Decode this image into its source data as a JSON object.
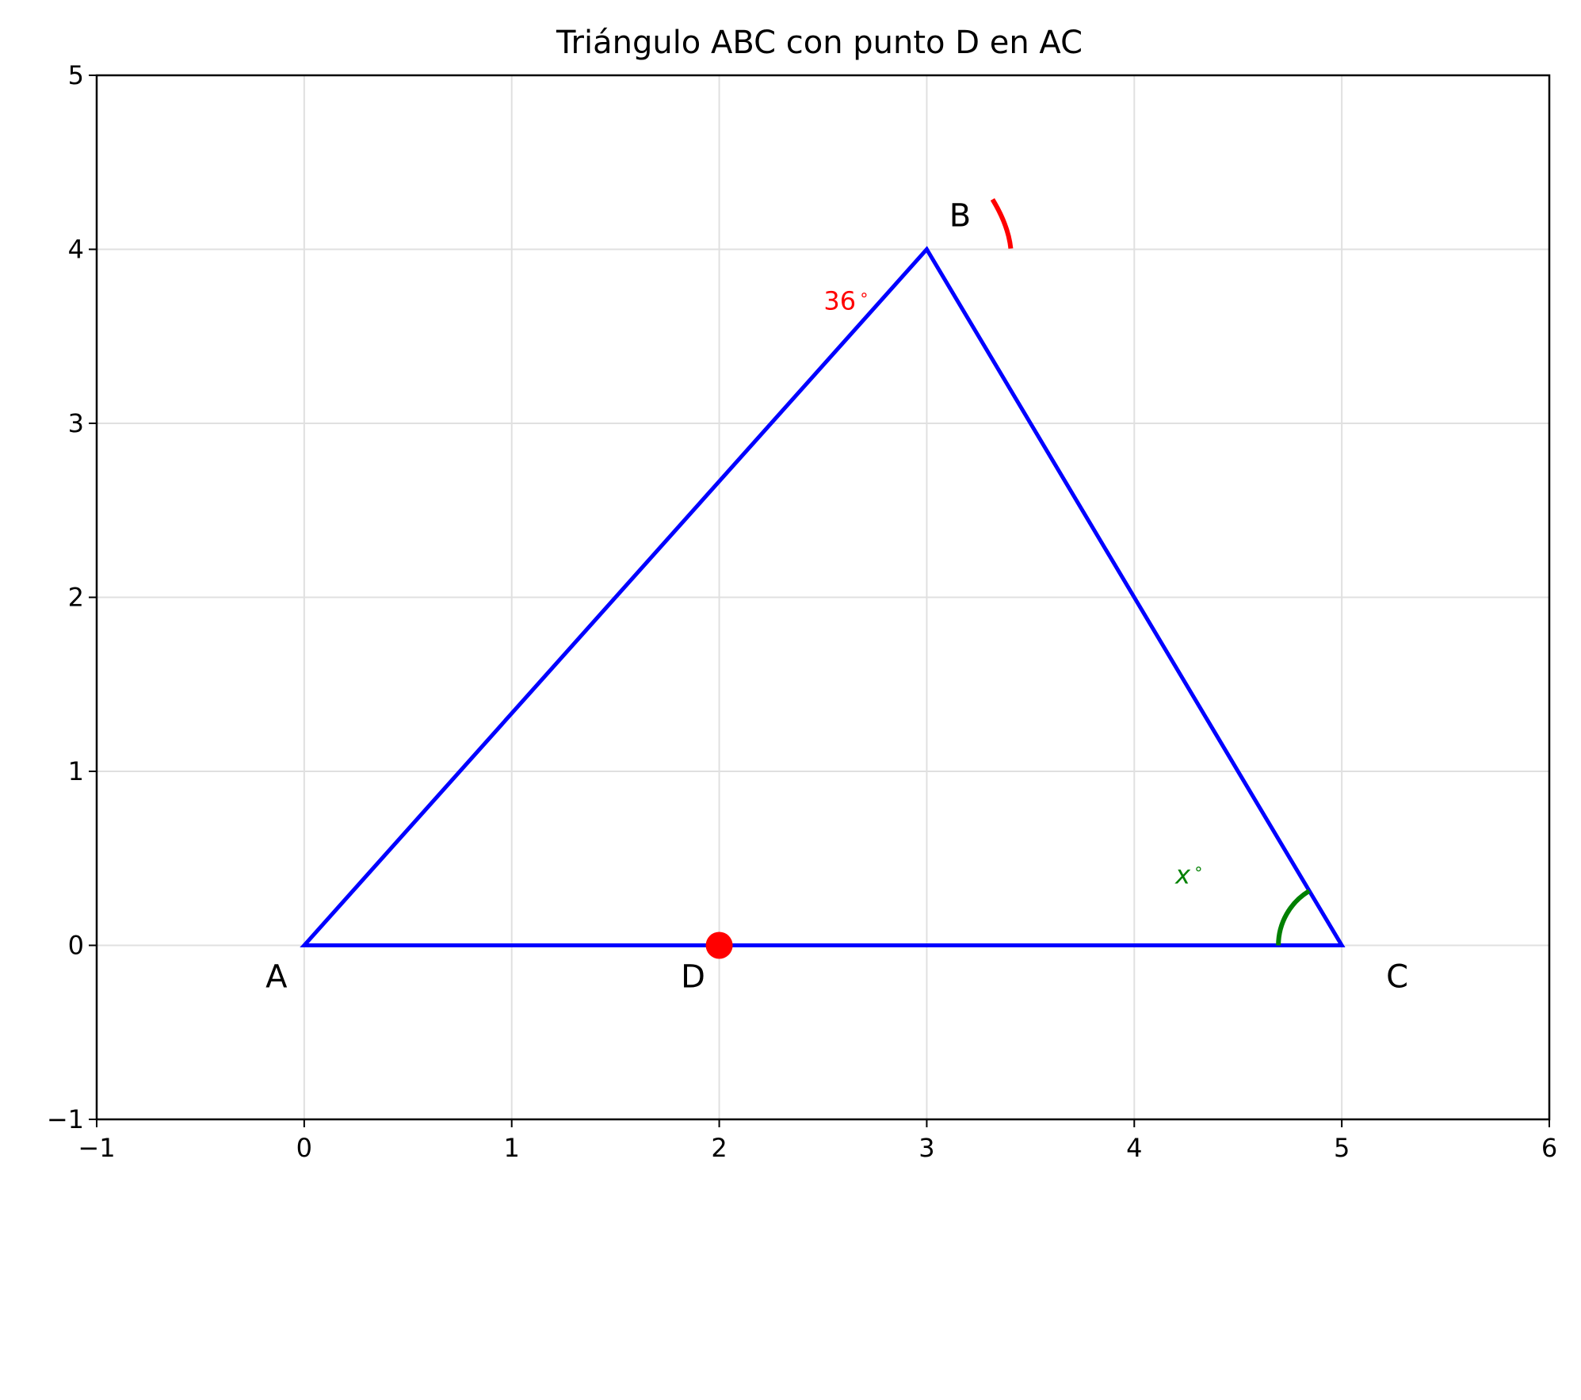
{
  "title": "Triángulo ABC con punto D en AC",
  "colors": {
    "triangle": "#0000ff",
    "point_d": "#ff0000",
    "angle_b": "#ff0000",
    "angle_c": "#008000",
    "grid": "#e0e0e0"
  },
  "chart_data": {
    "type": "scatter",
    "title": "Triángulo ABC con punto D en AC",
    "xlim": [
      -1,
      6
    ],
    "ylim": [
      -1,
      5
    ],
    "grid": true,
    "x_ticks": [
      "−1",
      "0",
      "1",
      "2",
      "3",
      "4",
      "5",
      "6"
    ],
    "y_ticks": [
      "−1",
      "0",
      "1",
      "2",
      "3",
      "4",
      "5"
    ],
    "points": [
      {
        "label": "A",
        "x": 0,
        "y": 0
      },
      {
        "label": "B",
        "x": 3,
        "y": 4
      },
      {
        "label": "C",
        "x": 5,
        "y": 0
      },
      {
        "label": "D",
        "x": 2,
        "y": 0
      }
    ],
    "triangle": [
      "A",
      "B",
      "C"
    ],
    "angles": [
      {
        "vertex": "B",
        "label": "36",
        "deg_sign": "∘"
      },
      {
        "vertex": "C",
        "label": "x",
        "deg_sign": "∘"
      }
    ]
  }
}
